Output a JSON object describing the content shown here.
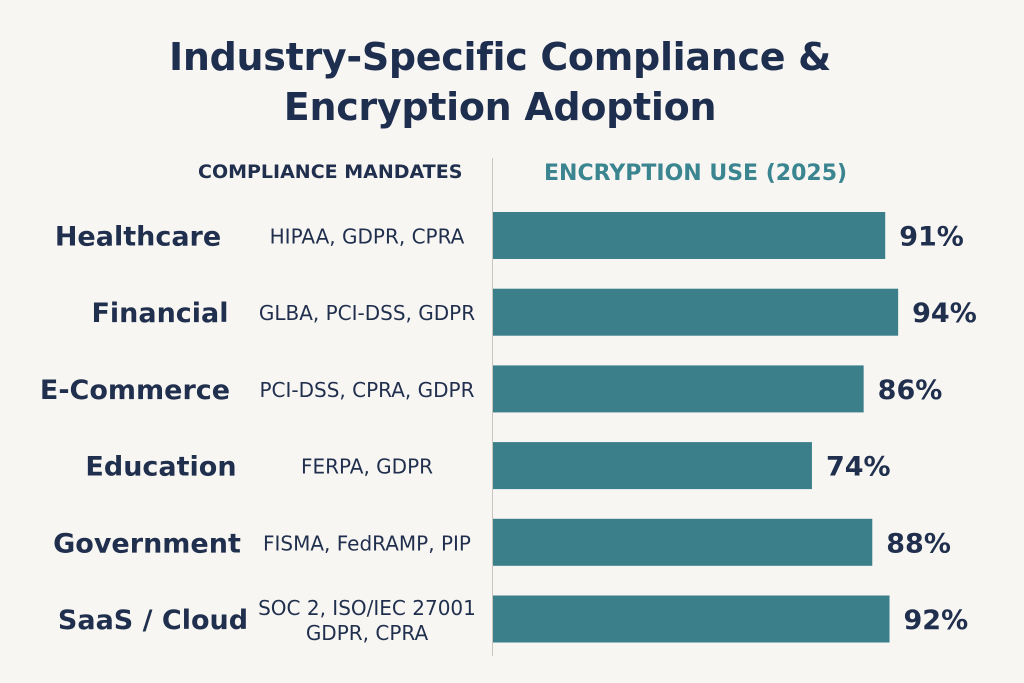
{
  "title_line1": "Industry-Specific Compliance &",
  "title_line2": "Encryption Adoption",
  "header_left": "COMPLIANCE MANDATES",
  "header_right": "ENCRYPTION USE  (2025)",
  "colors": {
    "bar": "#3a7f8a",
    "text": "#1f2f4d",
    "accent": "#3a8590",
    "background": "#f8f6f2"
  },
  "chart_data": {
    "type": "bar",
    "orientation": "horizontal",
    "categories": [
      "Healthcare",
      "Financial",
      "E-Commerce",
      "Education",
      "Government",
      "SaaS / Cloud"
    ],
    "mandates": [
      [
        "HIPAA, GDPR, CPRA"
      ],
      [
        "GLBA, PCI-DSS, GDPR"
      ],
      [
        "PCI-DSS, CPRA, GDPR"
      ],
      [
        "FERPA, GDPR"
      ],
      [
        "FISMA, FedRAMP, PIP"
      ],
      [
        "SOC 2, ISO/IEC 27001",
        "GDPR, CPRA"
      ]
    ],
    "values": [
      91,
      94,
      86,
      74,
      88,
      92
    ],
    "value_labels": [
      "91%",
      "94%",
      "86%",
      "74%",
      "88%",
      "92%"
    ],
    "unit": "%",
    "xlim": [
      0,
      100
    ],
    "grid": false,
    "legend": "none"
  }
}
